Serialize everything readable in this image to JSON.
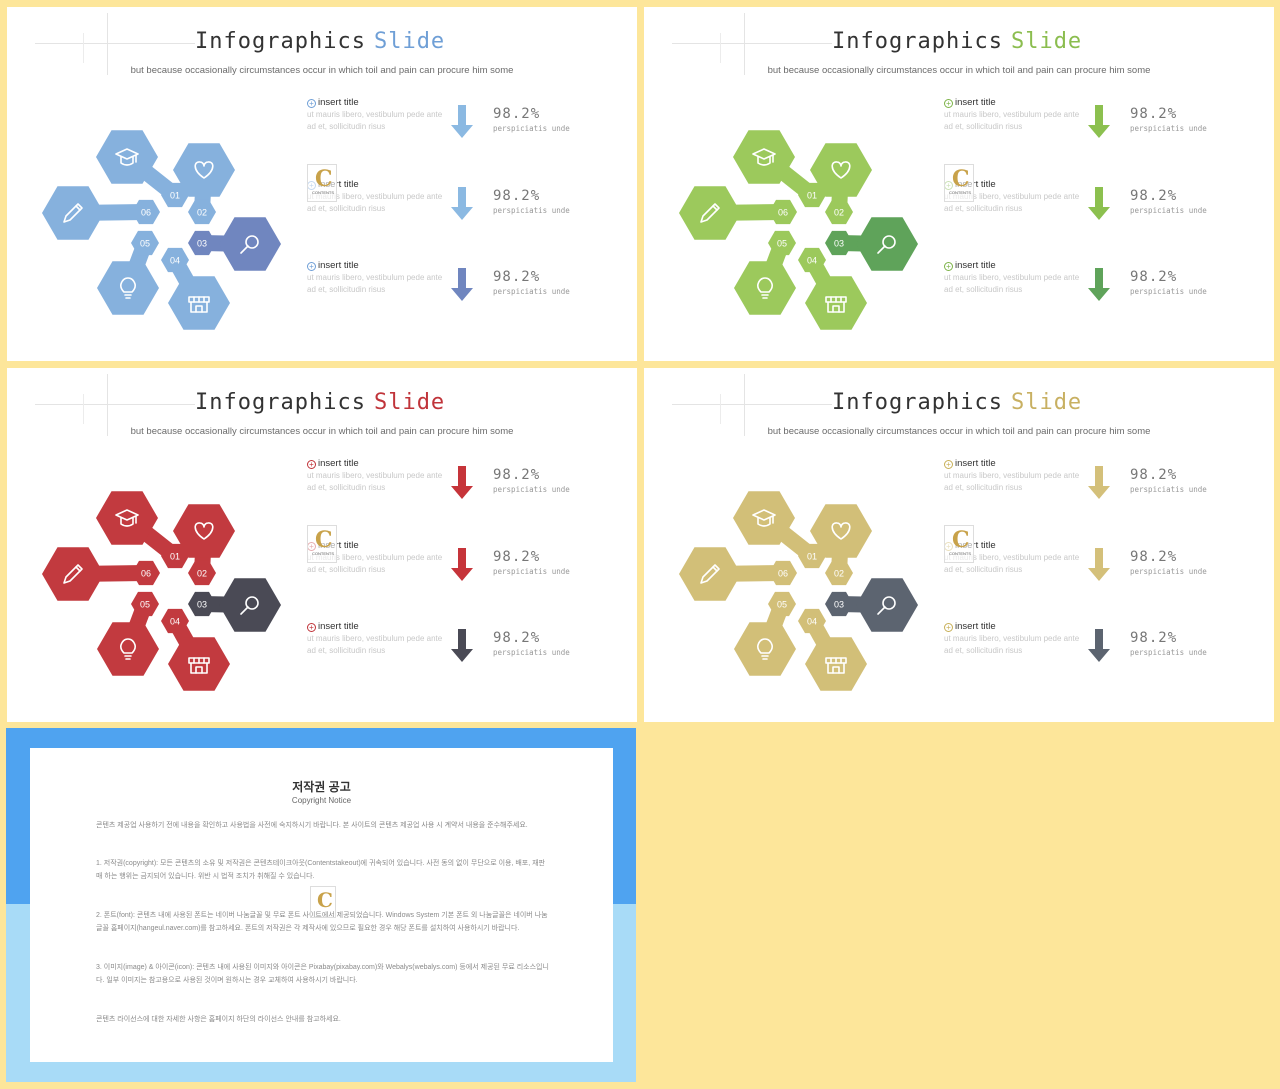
{
  "slides": [
    {
      "title_a": "Infographics",
      "title_b": "Slide",
      "subtitle": "but because occasionally circumstances occur in which toil and pain can procure him some",
      "colors": {
        "accent": "#6f9fd6",
        "hex_main": "#86b1dd",
        "hex_alt": "#7086bf",
        "title_b": "#6f9fd6",
        "arrow1": "#8bb9e2",
        "arrow2": "#8bb9e2",
        "arrow3": "#7086bf"
      },
      "numbers": [
        "01",
        "02",
        "03",
        "04",
        "05",
        "06"
      ],
      "icons": [
        "graduation-cap-icon",
        "heart-icon",
        "magnifier-icon",
        "store-icon",
        "lightbulb-icon",
        "pencil-icon"
      ],
      "items": [
        {
          "title": "insert title",
          "body": "ut mauris libero, vestibulum pede ante ad et, sollicitudin risus",
          "value": "98.2%",
          "caption": "perspiciatis unde"
        },
        {
          "title": "insert title",
          "body": "ut mauris libero, vestibulum pede ante ad et, sollicitudin risus",
          "value": "98.2%",
          "caption": "perspiciatis unde"
        },
        {
          "title": "insert title",
          "body": "ut mauris libero, vestibulum pede ante ad et, sollicitudin risus",
          "value": "98.2%",
          "caption": "perspiciatis unde"
        }
      ],
      "watermark": {
        "letter": "C",
        "text": "CONTENTS"
      }
    },
    {
      "title_a": "Infographics",
      "title_b": "Slide",
      "subtitle": "but because occasionally circumstances occur in which toil and pain can procure him some",
      "colors": {
        "accent": "#7cb347",
        "hex_main": "#9cc95c",
        "hex_alt": "#5fa35a",
        "title_b": "#8bbd4f",
        "arrow1": "#8cc04f",
        "arrow2": "#8cc04f",
        "arrow3": "#5fa35a"
      },
      "numbers": [
        "01",
        "02",
        "03",
        "04",
        "05",
        "06"
      ],
      "icons": [
        "graduation-cap-icon",
        "heart-icon",
        "magnifier-icon",
        "store-icon",
        "lightbulb-icon",
        "pencil-icon"
      ],
      "items": [
        {
          "title": "insert title",
          "body": "ut mauris libero, vestibulum pede ante ad et, sollicitudin risus",
          "value": "98.2%",
          "caption": "perspiciatis unde"
        },
        {
          "title": "insert title",
          "body": "ut mauris libero, vestibulum pede ante ad et, sollicitudin risus",
          "value": "98.2%",
          "caption": "perspiciatis unde"
        },
        {
          "title": "insert title",
          "body": "ut mauris libero, vestibulum pede ante ad et, sollicitudin risus",
          "value": "98.2%",
          "caption": "perspiciatis unde"
        }
      ],
      "watermark": {
        "letter": "C",
        "text": "CONTENTS"
      }
    },
    {
      "title_a": "Infographics",
      "title_b": "Slide",
      "subtitle": "but because occasionally circumstances occur in which toil and pain can procure him some",
      "colors": {
        "accent": "#c0343a",
        "hex_main": "#c23a3f",
        "hex_alt": "#4a4a55",
        "title_b": "#c0343a",
        "arrow1": "#c6343a",
        "arrow2": "#c6343a",
        "arrow3": "#4a4a55"
      },
      "numbers": [
        "01",
        "02",
        "03",
        "04",
        "05",
        "06"
      ],
      "icons": [
        "graduation-cap-icon",
        "heart-icon",
        "magnifier-icon",
        "store-icon",
        "lightbulb-icon",
        "pencil-icon"
      ],
      "items": [
        {
          "title": "insert title",
          "body": "ut mauris libero, vestibulum pede ante ad et, sollicitudin risus",
          "value": "98.2%",
          "caption": "perspiciatis unde"
        },
        {
          "title": "insert title",
          "body": "ut mauris libero, vestibulum pede ante ad et, sollicitudin risus",
          "value": "98.2%",
          "caption": "perspiciatis unde"
        },
        {
          "title": "insert title",
          "body": "ut mauris libero, vestibulum pede ante ad et, sollicitudin risus",
          "value": "98.2%",
          "caption": "perspiciatis unde"
        }
      ],
      "watermark": {
        "letter": "C",
        "text": "CONTENTS"
      }
    },
    {
      "title_a": "Infographics",
      "title_b": "Slide",
      "subtitle": "but because occasionally circumstances occur in which toil and pain can procure him some",
      "colors": {
        "accent": "#c8b058",
        "hex_main": "#d2bf78",
        "hex_alt": "#5c6470",
        "title_b": "#c8b062",
        "arrow1": "#d4c07a",
        "arrow2": "#d4c07a",
        "arrow3": "#5c6470"
      },
      "numbers": [
        "01",
        "02",
        "03",
        "04",
        "05",
        "06"
      ],
      "icons": [
        "graduation-cap-icon",
        "heart-icon",
        "magnifier-icon",
        "store-icon",
        "lightbulb-icon",
        "pencil-icon"
      ],
      "items": [
        {
          "title": "insert title",
          "body": "ut mauris libero, vestibulum pede ante ad et, sollicitudin risus",
          "value": "98.2%",
          "caption": "perspiciatis unde"
        },
        {
          "title": "insert title",
          "body": "ut mauris libero, vestibulum pede ante ad et, sollicitudin risus",
          "value": "98.2%",
          "caption": "perspiciatis unde"
        },
        {
          "title": "insert title",
          "body": "ut mauris libero, vestibulum pede ante ad et, sollicitudin risus",
          "value": "98.2%",
          "caption": "perspiciatis unde"
        }
      ],
      "watermark": {
        "letter": "C",
        "text": "CONTENTS"
      }
    }
  ],
  "notice": {
    "title": "저작권 공고",
    "subtitle": "Copyright Notice",
    "paragraphs": [
      "콘텐츠 제공업 사용하기 전에 내용을 확인하고 사용법을 사전에 숙지하시기 바랍니다. 본 사이트의 콘텐츠 제공업 사용 시 계약서 내용을 준수해주세요.",
      "1. 저작권(copyright): 모든 콘텐츠의 소유 및 저작권은 콘텐츠테이크아웃(Contentstakeout)에 귀속되어 있습니다. 사전 동의 없이 무단으로 이용, 배포, 재판매 하는 행위는 금지되어 있습니다. 위반 시 법적 조치가 취해질 수 있습니다.",
      "2. 폰트(font): 콘텐츠 내에 사용된 폰트는 네이버 나눔글꼴 및 무료 폰트 사이트에서 제공되었습니다. Windows System 기본 폰트 외 나눔글꼴은 네이버 나눔글꼴 홈페이지(hangeul.naver.com)를 참고하세요. 폰트의 저작권은 각 제작사에 있으므로 필요한 경우 해당 폰트를 설치하여 사용하시기 바랍니다.",
      "3. 이미지(image) & 아이콘(icon): 콘텐츠 내에 사용된 이미지와 아이콘은 Pixabay(pixabay.com)와 Webalys(webalys.com) 등에서 제공된 무료 리소스입니다. 일부 이미지는 참고용으로 사용된 것이며 원하시는 경우 교체하여 사용하시기 바랍니다.",
      "콘텐츠 라이선스에 대한 자세한 사항은 홈페이지 하단의 라이선스 안내를 참고하세요."
    ],
    "watermark_letter": "C"
  }
}
